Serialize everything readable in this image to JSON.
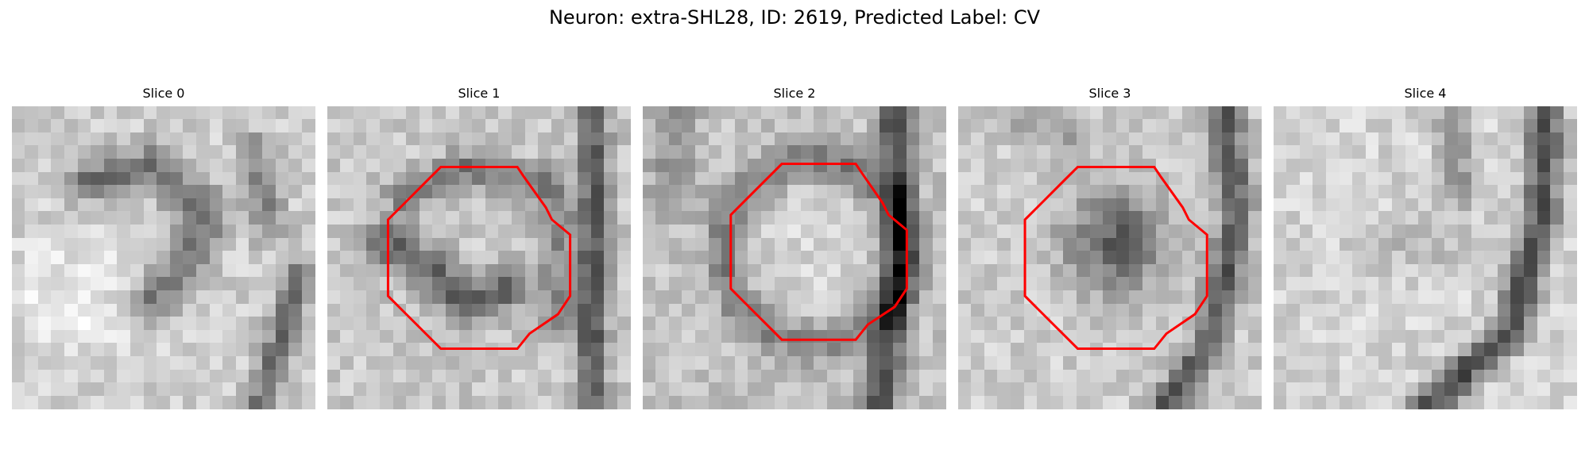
{
  "figure": {
    "title": "Neuron: extra-SHL28, ID: 2619, Predicted Label: CV"
  },
  "panels": [
    {
      "title": "Slice 0",
      "has_outline": false
    },
    {
      "title": "Slice 1",
      "has_outline": true
    },
    {
      "title": "Slice 2",
      "has_outline": true
    },
    {
      "title": "Slice 3",
      "has_outline": true
    },
    {
      "title": "Slice 4",
      "has_outline": false
    }
  ],
  "colors": {
    "outline": "#ff0000",
    "background": "#ffffff"
  }
}
